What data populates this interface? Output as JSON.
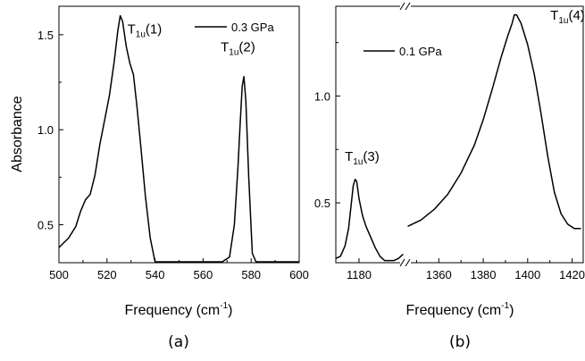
{
  "chart_data": [
    {
      "type": "line",
      "panel_label": "(a)",
      "xlabel": {
        "main": "Frequency (cm",
        "sup": "-1",
        "end": ")"
      },
      "ylabel": "Absorbance",
      "xlim": [
        500,
        600
      ],
      "ylim": [
        0.3,
        1.65
      ],
      "xticks": [
        "500",
        "520",
        "540",
        "560",
        "580",
        "600"
      ],
      "xtick_values": [
        500,
        520,
        540,
        560,
        580,
        600
      ],
      "yticks": [
        "0.5",
        "1.0",
        "1.5"
      ],
      "ytick_values": [
        0.5,
        1.0,
        1.5
      ],
      "legend": {
        "name": "0.3 GPa",
        "placement": "top-right"
      },
      "annotations": [
        {
          "main": "T",
          "sub": "1u",
          "suffix": "(1)",
          "x": 527,
          "y": 1.6
        },
        {
          "main": "T",
          "sub": "1u",
          "suffix": "(2)",
          "x": 577,
          "y": 1.44
        }
      ],
      "series": [
        {
          "name": "0.3 GPa",
          "x": [
            500,
            504,
            507,
            509,
            511,
            513,
            515,
            517,
            519,
            521,
            523,
            524.5,
            525.5,
            526.5,
            528,
            529.5,
            531,
            532.5,
            534,
            536,
            538,
            540,
            542,
            545,
            550,
            555,
            560,
            564,
            568,
            571,
            573,
            574.5,
            575.5,
            576.3,
            577,
            577.8,
            579,
            580.5,
            582,
            585,
            590,
            595,
            600
          ],
          "y": [
            0.38,
            0.43,
            0.49,
            0.57,
            0.63,
            0.66,
            0.76,
            0.92,
            1.05,
            1.18,
            1.36,
            1.52,
            1.6,
            1.57,
            1.44,
            1.35,
            1.29,
            1.12,
            0.92,
            0.65,
            0.43,
            0.3,
            0.23,
            0.2,
            0.18,
            0.18,
            0.19,
            0.21,
            0.25,
            0.33,
            0.5,
            0.8,
            1.05,
            1.23,
            1.28,
            1.15,
            0.75,
            0.35,
            0.18,
            0.13,
            0.12,
            0.12,
            0.14
          ]
        }
      ]
    },
    {
      "type": "line",
      "panel_label": "(b)",
      "xlabel": {
        "main": "Frequency (cm",
        "sup": "-1",
        "end": ")"
      },
      "ylabel": "",
      "broken_axis": true,
      "segments": [
        {
          "xlim": [
            1170,
            1200
          ]
        },
        {
          "xlim": [
            1345,
            1425
          ]
        }
      ],
      "ylim": [
        0.22,
        1.42
      ],
      "xticks": [
        "1180",
        "1360",
        "1380",
        "1400",
        "1420"
      ],
      "xtick_values": [
        1180,
        1360,
        1380,
        1400,
        1420
      ],
      "yticks": [
        "0.5",
        "1.0"
      ],
      "ytick_values": [
        0.5,
        1.0
      ],
      "legend": {
        "name": "0.1 GPa",
        "placement": "top-left"
      },
      "annotations": [
        {
          "main": "T",
          "sub": "1u",
          "suffix": "(3)",
          "x": 1178.5,
          "y": 0.68
        },
        {
          "main": "T",
          "sub": "1u",
          "suffix": "(4)",
          "x": 1411,
          "y": 1.34
        }
      ],
      "series": [
        {
          "name": "0.1 GPa",
          "segment": 0,
          "x": [
            1170,
            1172,
            1174,
            1175.5,
            1176.5,
            1177.5,
            1178.3,
            1179,
            1180,
            1181.5,
            1183,
            1185,
            1187,
            1189,
            1191,
            1193,
            1195,
            1197,
            1199
          ],
          "y": [
            0.24,
            0.25,
            0.3,
            0.38,
            0.48,
            0.58,
            0.61,
            0.6,
            0.52,
            0.44,
            0.39,
            0.34,
            0.29,
            0.25,
            0.23,
            0.23,
            0.23,
            0.24,
            0.26
          ]
        },
        {
          "name": "0.1 GPa",
          "segment": 1,
          "x": [
            1346,
            1352,
            1358,
            1364,
            1370,
            1376,
            1380,
            1384,
            1388,
            1391,
            1393,
            1394,
            1395,
            1397,
            1400,
            1403,
            1406,
            1409,
            1412,
            1415,
            1418,
            1421,
            1424
          ],
          "y": [
            0.39,
            0.42,
            0.47,
            0.54,
            0.64,
            0.77,
            0.89,
            1.03,
            1.18,
            1.28,
            1.34,
            1.38,
            1.38,
            1.34,
            1.24,
            1.1,
            0.92,
            0.72,
            0.55,
            0.45,
            0.4,
            0.38,
            0.38
          ]
        }
      ]
    }
  ]
}
